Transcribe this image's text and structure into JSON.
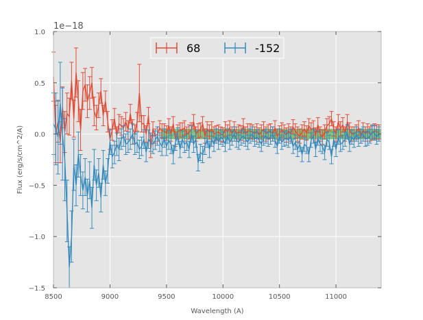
{
  "chart_data": {
    "type": "line",
    "title": "",
    "xlabel": "Wavelength (A)",
    "ylabel": "Flux (erg/s/cm^2/A)",
    "y_offset_label": "1e−18",
    "xlim": [
      8500,
      11400
    ],
    "ylim": [
      -1.5,
      1.0
    ],
    "x_ticks": [
      8500,
      9000,
      9500,
      10000,
      10500,
      11000
    ],
    "x_tick_labels": [
      "8500",
      "9000",
      "9500",
      "10000",
      "10500",
      "11000"
    ],
    "y_ticks": [
      1.0,
      0.5,
      0.0,
      -0.5,
      -1.0,
      -1.5
    ],
    "y_tick_labels": [
      "1.0",
      "0.5",
      "0.0",
      "−0.5",
      "−1.0",
      "−1.5"
    ],
    "grid": true,
    "legend_position": "top-center",
    "x_start": 8500,
    "x_step": 20,
    "series": [
      {
        "name": "68",
        "color": "#e24a33",
        "values": [
          0.56,
          0.0,
          0.12,
          -0.08,
          0.26,
          0.02,
          0.2,
          0.17,
          0.52,
          0.15,
          0.6,
          0.32,
          0.04,
          0.42,
          0.48,
          0.32,
          0.4,
          0.5,
          0.22,
          0.16,
          0.28,
          0.42,
          0.18,
          0.32,
          0.12,
          -0.05,
          0.04,
          0.15,
          -0.02,
          0.1,
          0.08,
          0.06,
          0.12,
          0.04,
          0.2,
          0.05,
          0.0,
          0.12,
          0.4,
          0.1,
          0.1,
          0.0,
          0.18,
          -0.15,
          0.05,
          -0.02,
          0.0,
          0.06,
          0.03,
          0.03,
          0.01,
          0.08,
          0.0,
          0.1,
          -0.05,
          0.02,
          0.04,
          0.04,
          0.06,
          0.0,
          0.02,
          0.04,
          0.12,
          0.0,
          0.03,
          0.04,
          0.1,
          -0.02,
          0.05,
          0.02,
          0.05,
          0.0,
          0.01,
          0.02,
          0.0,
          -0.01,
          0.05,
          0.02,
          0.06,
          0.0,
          0.05,
          0.0,
          0.02,
          0.01,
          0.08,
          0.0,
          0.03,
          0.03,
          0.02,
          0.0,
          0.03,
          -0.01,
          0.02,
          0.05,
          0.0,
          0.02,
          0.03,
          0.0,
          0.06,
          -0.02,
          0.01,
          0.04,
          0.02,
          -0.01,
          0.03,
          0.0,
          0.07,
          0.03,
          0.0,
          -0.02,
          0.02,
          0.05,
          0.01,
          0.08,
          0.04,
          0.06,
          -0.01,
          0.09,
          0.0,
          -0.03,
          0.02,
          0.08,
          0.1,
          0.15,
          0.05,
          0.0,
          0.12,
          0.05,
          0.09,
          0.0,
          0.12,
          0.04,
          0.0,
          0.0,
          0.02,
          0.06,
          -0.02,
          0.04,
          0.0,
          0.03,
          0.0,
          0.01,
          0.03,
          0.02,
          0.02
        ],
        "errors": [
          0.24,
          0.28,
          0.2,
          0.2,
          0.2,
          0.2,
          0.2,
          0.18,
          0.18,
          0.18,
          0.24,
          0.2,
          0.2,
          0.18,
          0.16,
          0.16,
          0.16,
          0.15,
          0.14,
          0.12,
          0.12,
          0.12,
          0.1,
          0.1,
          0.1,
          0.1,
          0.1,
          0.1,
          0.09,
          0.09,
          0.09,
          0.09,
          0.09,
          0.09,
          0.09,
          0.09,
          0.09,
          0.09,
          0.28,
          0.08,
          0.08,
          0.08,
          0.08,
          0.08,
          0.07,
          0.07,
          0.07,
          0.07,
          0.07,
          0.07,
          0.07,
          0.07,
          0.07,
          0.07,
          0.07,
          0.07,
          0.07,
          0.07,
          0.07,
          0.07,
          0.07,
          0.07,
          0.07,
          0.07,
          0.07,
          0.07,
          0.07,
          0.07,
          0.07,
          0.07,
          0.07,
          0.07,
          0.07,
          0.07,
          0.07,
          0.07,
          0.07,
          0.07,
          0.07,
          0.07,
          0.07,
          0.07,
          0.07,
          0.07,
          0.07,
          0.07,
          0.07,
          0.07,
          0.07,
          0.07,
          0.07,
          0.07,
          0.07,
          0.07,
          0.07,
          0.07,
          0.07,
          0.07,
          0.07,
          0.07,
          0.07,
          0.07,
          0.07,
          0.07,
          0.07,
          0.07,
          0.07,
          0.07,
          0.07,
          0.07,
          0.07,
          0.07,
          0.07,
          0.07,
          0.07,
          0.07,
          0.07,
          0.07,
          0.07,
          0.07,
          0.07,
          0.07,
          0.07,
          0.07,
          0.07,
          0.07,
          0.07,
          0.07,
          0.07,
          0.07,
          0.07,
          0.07,
          0.07,
          0.07,
          0.07,
          0.07,
          0.07,
          0.07,
          0.07,
          0.07,
          0.07,
          0.07,
          0.07,
          0.07,
          0.07
        ]
      },
      {
        "name": "-152",
        "color": "#348abd",
        "values": [
          0.1,
          0.05,
          -0.03,
          0.3,
          0.0,
          -0.25,
          -0.75,
          -1.3,
          -1.0,
          -0.3,
          -0.5,
          -0.2,
          -0.4,
          -0.55,
          -0.42,
          -0.6,
          -0.45,
          -0.72,
          -0.3,
          -0.5,
          -0.38,
          -0.62,
          -0.3,
          -0.48,
          -0.36,
          -0.08,
          -0.22,
          -0.18,
          -0.1,
          -0.15,
          -0.05,
          -0.02,
          -0.1,
          -0.08,
          -0.05,
          0.0,
          -0.1,
          -0.08,
          -0.15,
          -0.12,
          -0.05,
          -0.18,
          -0.05,
          -0.08,
          -0.1,
          -0.06,
          -0.02,
          -0.08,
          -0.12,
          -0.04,
          -0.12,
          -0.06,
          -0.1,
          -0.2,
          -0.08,
          -0.02,
          -0.15,
          -0.05,
          -0.1,
          -0.08,
          -0.15,
          0.0,
          -0.1,
          -0.05,
          -0.28,
          -0.18,
          -0.2,
          -0.12,
          -0.05,
          -0.15,
          -0.05,
          -0.1,
          -0.02,
          -0.08,
          -0.03,
          -0.05,
          -0.1,
          -0.02,
          -0.08,
          -0.04,
          0.0,
          -0.06,
          -0.08,
          -0.04,
          -0.02,
          -0.05,
          -0.08,
          -0.02,
          0.0,
          -0.05,
          -0.03,
          -0.06,
          -0.1,
          -0.04,
          -0.02,
          -0.05,
          -0.03,
          0.0,
          -0.06,
          -0.12,
          -0.02,
          -0.08,
          -0.05,
          -0.04,
          -0.06,
          -0.02,
          -0.12,
          -0.08,
          -0.15,
          -0.1,
          -0.2,
          -0.1,
          -0.12,
          -0.2,
          -0.06,
          -0.02,
          -0.15,
          -0.04,
          -0.1,
          -0.12,
          -0.18,
          -0.05,
          -0.08,
          -0.22,
          -0.05,
          -0.15,
          -0.03,
          -0.1,
          -0.08,
          -0.05,
          0.02,
          -0.1,
          -0.03,
          -0.06,
          0.0,
          -0.05,
          -0.02,
          0.0,
          -0.05,
          -0.04,
          -0.02,
          0.02,
          0.01,
          -0.03,
          0.0
        ],
        "errors": [
          0.3,
          0.35,
          0.36,
          0.4,
          0.45,
          0.4,
          0.3,
          0.2,
          0.25,
          0.25,
          0.2,
          0.22,
          0.2,
          0.18,
          0.18,
          0.16,
          0.18,
          0.2,
          0.15,
          0.15,
          0.14,
          0.14,
          0.14,
          0.12,
          0.12,
          0.12,
          0.11,
          0.11,
          0.11,
          0.11,
          0.1,
          0.1,
          0.1,
          0.1,
          0.1,
          0.1,
          0.1,
          0.1,
          0.09,
          0.09,
          0.09,
          0.09,
          0.09,
          0.09,
          0.09,
          0.09,
          0.09,
          0.09,
          0.09,
          0.09,
          0.09,
          0.09,
          0.09,
          0.09,
          0.08,
          0.08,
          0.08,
          0.08,
          0.08,
          0.08,
          0.08,
          0.08,
          0.08,
          0.08,
          0.08,
          0.08,
          0.08,
          0.08,
          0.08,
          0.08,
          0.07,
          0.07,
          0.07,
          0.07,
          0.07,
          0.07,
          0.07,
          0.07,
          0.07,
          0.07,
          0.07,
          0.07,
          0.07,
          0.07,
          0.07,
          0.07,
          0.07,
          0.07,
          0.07,
          0.07,
          0.07,
          0.07,
          0.07,
          0.07,
          0.07,
          0.07,
          0.07,
          0.07,
          0.07,
          0.07,
          0.07,
          0.07,
          0.07,
          0.07,
          0.07,
          0.07,
          0.07,
          0.07,
          0.07,
          0.07,
          0.07,
          0.07,
          0.07,
          0.07,
          0.07,
          0.07,
          0.07,
          0.07,
          0.07,
          0.07,
          0.07,
          0.07,
          0.07,
          0.07,
          0.07,
          0.07,
          0.07,
          0.07,
          0.07,
          0.07,
          0.07,
          0.07,
          0.07,
          0.07,
          0.07,
          0.07,
          0.07,
          0.07,
          0.07,
          0.07,
          0.07,
          0.07,
          0.07,
          0.07,
          0.07
        ]
      }
    ],
    "shaded_region": {
      "x_start": 9450,
      "x_end": 11400,
      "y_low": -0.05,
      "y_high": 0.05,
      "color": "#2ca02c"
    }
  }
}
